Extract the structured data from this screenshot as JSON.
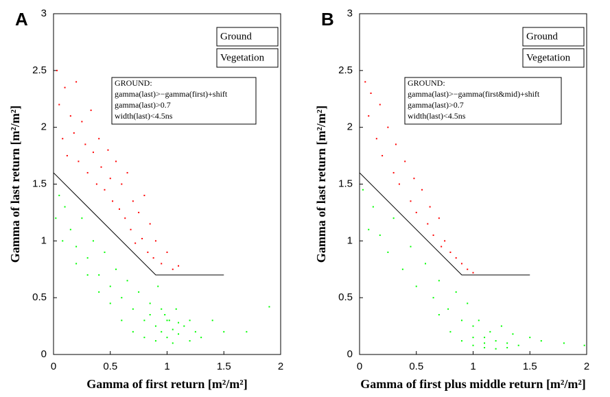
{
  "chart_data": [
    {
      "type": "scatter",
      "panel_label": "A",
      "xlabel": "Gamma of first return [m²/m²]",
      "ylabel": "Gamma of last return [m²/m²]",
      "xlim": [
        0,
        2
      ],
      "xticks": [
        0,
        0.5,
        1,
        1.5,
        2
      ],
      "ylim": [
        0,
        3
      ],
      "yticks": [
        0,
        0.5,
        1,
        1.5,
        2,
        2.5,
        3
      ],
      "legend": "upper right",
      "annotation": [
        "GROUND:",
        "gamma(last)>−gamma(first)+shift",
        "gamma(last)>0.7",
        "width(last)<4.5ns"
      ],
      "threshold": {
        "color": "#000000",
        "x": [
          0,
          0.9,
          1.5
        ],
        "y": [
          1.6,
          0.7,
          0.7
        ]
      },
      "series": [
        {
          "name": "Ground",
          "color": "#ff0000",
          "x": [
            0.03,
            0.05,
            0.08,
            0.1,
            0.12,
            0.15,
            0.18,
            0.2,
            0.22,
            0.25,
            0.28,
            0.3,
            0.33,
            0.35,
            0.38,
            0.4,
            0.42,
            0.45,
            0.48,
            0.5,
            0.52,
            0.55,
            0.58,
            0.6,
            0.63,
            0.65,
            0.68,
            0.7,
            0.72,
            0.75,
            0.78,
            0.8,
            0.83,
            0.85,
            0.88,
            0.9,
            0.95,
            1.0,
            1.05,
            1.1
          ],
          "y": [
            2.5,
            2.2,
            1.9,
            2.35,
            1.75,
            2.1,
            1.95,
            2.4,
            1.7,
            2.05,
            1.85,
            1.6,
            2.15,
            1.78,
            1.5,
            1.9,
            1.65,
            1.45,
            1.8,
            1.55,
            1.35,
            1.7,
            1.28,
            1.5,
            1.2,
            1.6,
            1.1,
            1.35,
            0.98,
            1.25,
            1.02,
            1.4,
            0.9,
            1.15,
            0.85,
            1.0,
            0.8,
            0.9,
            0.75,
            0.78
          ]
        },
        {
          "name": "Vegetation",
          "color": "#00ff00",
          "x": [
            0.02,
            0.05,
            0.08,
            0.1,
            0.15,
            0.2,
            0.25,
            0.3,
            0.35,
            0.4,
            0.45,
            0.5,
            0.55,
            0.6,
            0.65,
            0.7,
            0.75,
            0.8,
            0.85,
            0.9,
            0.92,
            0.95,
            0.98,
            1.0,
            1.02,
            1.05,
            1.08,
            1.1,
            1.15,
            1.2,
            1.25,
            1.3,
            1.4,
            1.5,
            1.7,
            1.9,
            0.6,
            0.7,
            0.8,
            0.9,
            1.0,
            1.1,
            0.5,
            0.4,
            0.3,
            0.2,
            0.85,
            0.95,
            1.05,
            1.2
          ],
          "y": [
            1.2,
            1.4,
            1.0,
            1.3,
            1.1,
            0.95,
            1.2,
            0.85,
            1.0,
            0.7,
            0.9,
            0.6,
            0.75,
            0.5,
            0.65,
            0.4,
            0.55,
            0.3,
            0.45,
            0.25,
            0.6,
            0.2,
            0.35,
            0.15,
            0.3,
            0.22,
            0.4,
            0.18,
            0.25,
            0.3,
            0.2,
            0.15,
            0.3,
            0.2,
            0.2,
            0.42,
            0.3,
            0.2,
            0.15,
            0.12,
            0.3,
            0.28,
            0.45,
            0.55,
            0.7,
            0.8,
            0.35,
            0.4,
            0.1,
            0.12
          ]
        }
      ]
    },
    {
      "type": "scatter",
      "panel_label": "B",
      "xlabel": "Gamma of first plus middle return [m²/m²]",
      "ylabel": "Gamma of last return [m²/m²]",
      "xlim": [
        0,
        2
      ],
      "xticks": [
        0,
        0.5,
        1,
        1.5,
        2
      ],
      "ylim": [
        0,
        3
      ],
      "yticks": [
        0,
        0.5,
        1,
        1.5,
        2,
        2.5,
        3
      ],
      "legend": "upper right",
      "annotation": [
        "GROUND:",
        "gamma(last)>−gamma(first&mid)+shift",
        "gamma(last)>0.7",
        "width(last)<4.5ns"
      ],
      "threshold": {
        "color": "#000000",
        "x": [
          0,
          0.9,
          1.5
        ],
        "y": [
          1.6,
          0.7,
          0.7
        ]
      },
      "series": [
        {
          "name": "Ground",
          "color": "#ff0000",
          "x": [
            0.05,
            0.08,
            0.1,
            0.15,
            0.18,
            0.2,
            0.25,
            0.3,
            0.32,
            0.35,
            0.4,
            0.45,
            0.48,
            0.5,
            0.55,
            0.6,
            0.62,
            0.65,
            0.7,
            0.72,
            0.75,
            0.8,
            0.85,
            0.9,
            0.95,
            1.0
          ],
          "y": [
            2.4,
            2.1,
            2.3,
            1.9,
            2.2,
            1.75,
            2.0,
            1.6,
            1.85,
            1.5,
            1.7,
            1.35,
            1.55,
            1.25,
            1.45,
            1.15,
            1.3,
            1.05,
            1.2,
            0.95,
            1.0,
            0.9,
            0.85,
            0.8,
            0.75,
            0.72
          ]
        },
        {
          "name": "Vegetation",
          "color": "#00ff00",
          "x": [
            0.03,
            0.08,
            0.12,
            0.18,
            0.25,
            0.3,
            0.38,
            0.45,
            0.5,
            0.58,
            0.65,
            0.7,
            0.78,
            0.85,
            0.9,
            0.95,
            1.0,
            1.05,
            1.1,
            1.15,
            1.2,
            1.25,
            1.3,
            1.35,
            1.4,
            1.5,
            1.6,
            1.8,
            1.98,
            0.9,
            1.0,
            1.1,
            1.2,
            0.8,
            0.7,
            1.3,
            1.0,
            1.1
          ],
          "y": [
            1.45,
            1.1,
            1.3,
            1.05,
            0.9,
            1.2,
            0.75,
            0.95,
            0.6,
            0.8,
            0.5,
            0.65,
            0.4,
            0.55,
            0.3,
            0.45,
            0.15,
            0.3,
            0.1,
            0.2,
            0.12,
            0.25,
            0.1,
            0.18,
            0.08,
            0.15,
            0.12,
            0.1,
            0.08,
            0.12,
            0.08,
            0.06,
            0.05,
            0.2,
            0.35,
            0.06,
            0.25,
            0.15
          ]
        }
      ]
    }
  ]
}
